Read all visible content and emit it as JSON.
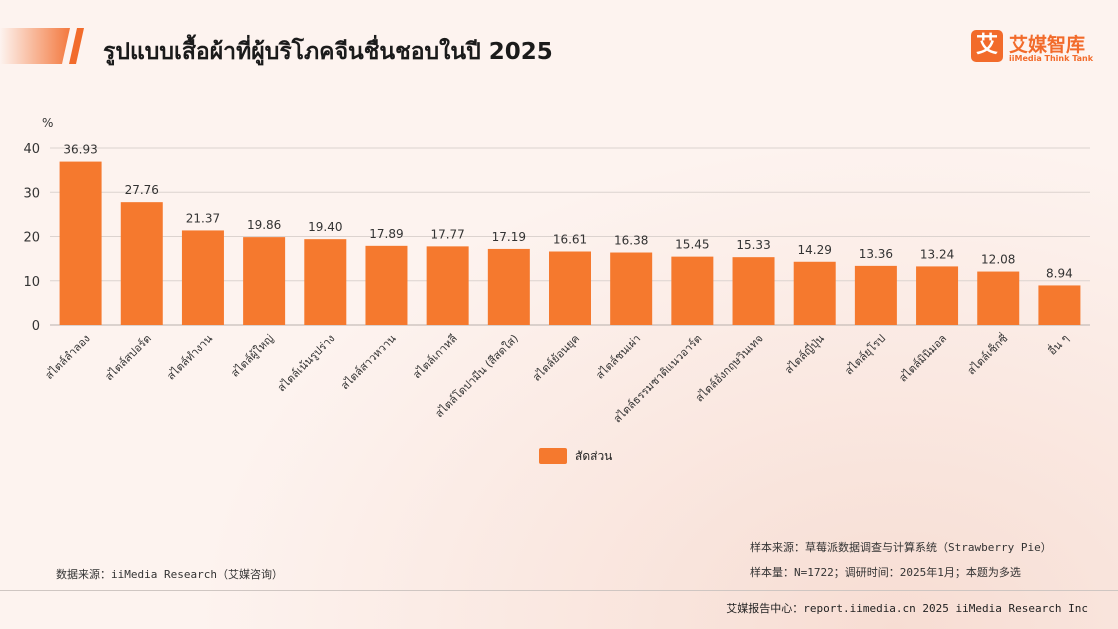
{
  "title": "รูปแบบเสื้อผ้าที่ผู้บริโภคจีนชื่นชอบในปี 2025",
  "logo": {
    "mark": "艾",
    "name_cn": "艾媒智库",
    "name_en": "iiMedia Think Tank"
  },
  "colors": {
    "bar": "#f5792e",
    "accent": "#f26b2b",
    "grid": "#dcd3cf"
  },
  "chart_data": {
    "type": "bar",
    "ylabel": "%",
    "ylim": [
      0,
      40
    ],
    "yticks": [
      0,
      10,
      20,
      30,
      40
    ],
    "grid": true,
    "legend_position": "bottom-center",
    "series": [
      {
        "name": "สัดส่วน",
        "values": [
          36.93,
          27.76,
          21.37,
          19.86,
          19.4,
          17.89,
          17.77,
          17.19,
          16.61,
          16.38,
          15.45,
          15.33,
          14.29,
          13.36,
          13.24,
          12.08,
          8.94
        ],
        "labels": [
          "36.93",
          "27.76",
          "21.37",
          "19.86",
          "19.40",
          "17.89",
          "17.77",
          "17.19",
          "16.61",
          "16.38",
          "15.45",
          "15.33",
          "14.29",
          "13.36",
          "13.24",
          "12.08",
          "8.94"
        ]
      }
    ],
    "categories": [
      "สไตล์ลำลอง",
      "สไตล์สปอร์ต",
      "สไตล์ทำงาน",
      "สไตล์ผู้ใหญ่",
      "สไตล์เน้นรูปร่าง",
      "สไตล์สาวหวาน",
      "สไตล์เกาหลี",
      "สไตล์โดปามีน (สีสดใส)",
      "สไตล์ย้อนยุค",
      "สไตล์ชนเผ่า",
      "สไตล์ธรรมชาติแนวอาร์ต",
      "สไตล์อังกฤษวินเทจ",
      "สไตล์ญี่ปุ่น",
      "สไตล์ยุโรป",
      "สไตล์มินิมอล",
      "สไตล์เซ็กซี่",
      "อื่น ๆ"
    ]
  },
  "notes": {
    "data_source": "数据来源：iiMedia Research（艾媒咨询）",
    "sample_source": "样本来源：草莓派数据调查与计算系统（Strawberry Pie）",
    "sample_size": "样本量：N=1722；调研时间：2025年1月；本题为多选"
  },
  "footer": "艾媒报告中心：report.iimedia.cn 2025 iiMedia Research Inc"
}
